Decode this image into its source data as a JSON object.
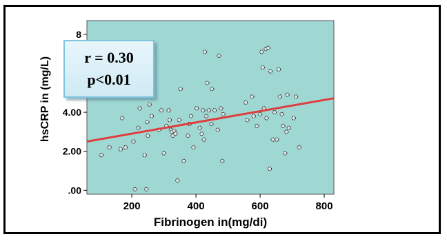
{
  "chart_data": {
    "type": "scatter",
    "xlabel": "Fibrinogen in(mg/di)",
    "ylabel": "hsCRP in (mg/L)",
    "xlim": [
      60,
      830
    ],
    "ylim": [
      -0.2,
      8.7
    ],
    "x_ticks": [
      200,
      400,
      600,
      800
    ],
    "x_tick_labels": [
      "200",
      "400",
      "600",
      "800"
    ],
    "y_ticks": [
      0,
      2,
      4,
      6,
      8
    ],
    "y_tick_labels": [
      ".00",
      "2.00",
      "4.00",
      "6",
      "8"
    ],
    "annotation": {
      "line1": "r = 0.30",
      "line2": "p<0.01"
    },
    "fit_line": {
      "x": [
        60,
        830
      ],
      "y": [
        2.5,
        4.72
      ],
      "color": "#e03c3c"
    },
    "plot_background": "#9fd8d3",
    "points": [
      {
        "x": 105,
        "y": 1.8
      },
      {
        "x": 130,
        "y": 2.2
      },
      {
        "x": 165,
        "y": 2.1
      },
      {
        "x": 170,
        "y": 3.7
      },
      {
        "x": 180,
        "y": 2.2
      },
      {
        "x": 205,
        "y": 2.5
      },
      {
        "x": 210,
        "y": 0.05
      },
      {
        "x": 220,
        "y": 3.2
      },
      {
        "x": 225,
        "y": 4.2
      },
      {
        "x": 240,
        "y": 1.8
      },
      {
        "x": 245,
        "y": 0.05
      },
      {
        "x": 248,
        "y": 3.5
      },
      {
        "x": 250,
        "y": 2.8
      },
      {
        "x": 255,
        "y": 4.4
      },
      {
        "x": 262,
        "y": 3.8
      },
      {
        "x": 285,
        "y": 3.1
      },
      {
        "x": 292,
        "y": 4.1
      },
      {
        "x": 300,
        "y": 1.9
      },
      {
        "x": 308,
        "y": 3.3
      },
      {
        "x": 315,
        "y": 4.1
      },
      {
        "x": 318,
        "y": 3.6
      },
      {
        "x": 322,
        "y": 3.1
      },
      {
        "x": 325,
        "y": 3.0
      },
      {
        "x": 328,
        "y": 2.8
      },
      {
        "x": 332,
        "y": 3.05
      },
      {
        "x": 336,
        "y": 2.9
      },
      {
        "x": 342,
        "y": 0.5
      },
      {
        "x": 348,
        "y": 3.6
      },
      {
        "x": 352,
        "y": 5.2
      },
      {
        "x": 362,
        "y": 1.5
      },
      {
        "x": 375,
        "y": 2.8
      },
      {
        "x": 380,
        "y": 3.4
      },
      {
        "x": 385,
        "y": 3.8
      },
      {
        "x": 392,
        "y": 2.2
      },
      {
        "x": 402,
        "y": 4.2
      },
      {
        "x": 412,
        "y": 3.2
      },
      {
        "x": 418,
        "y": 2.9
      },
      {
        "x": 422,
        "y": 4.1
      },
      {
        "x": 425,
        "y": 2.6
      },
      {
        "x": 428,
        "y": 7.1
      },
      {
        "x": 432,
        "y": 3.8
      },
      {
        "x": 435,
        "y": 5.5
      },
      {
        "x": 440,
        "y": 4.1
      },
      {
        "x": 448,
        "y": 3.4
      },
      {
        "x": 450,
        "y": 5.2
      },
      {
        "x": 458,
        "y": 4.1
      },
      {
        "x": 468,
        "y": 3.1
      },
      {
        "x": 472,
        "y": 6.9
      },
      {
        "x": 478,
        "y": 4.2
      },
      {
        "x": 482,
        "y": 1.5
      },
      {
        "x": 485,
        "y": 3.9
      },
      {
        "x": 555,
        "y": 4.5
      },
      {
        "x": 560,
        "y": 3.6
      },
      {
        "x": 575,
        "y": 4.8
      },
      {
        "x": 580,
        "y": 3.8
      },
      {
        "x": 590,
        "y": 3.3
      },
      {
        "x": 600,
        "y": 3.9
      },
      {
        "x": 605,
        "y": 7.1
      },
      {
        "x": 608,
        "y": 6.3
      },
      {
        "x": 612,
        "y": 4.2
      },
      {
        "x": 618,
        "y": 7.25
      },
      {
        "x": 620,
        "y": 3.7
      },
      {
        "x": 625,
        "y": 7.3
      },
      {
        "x": 630,
        "y": 1.1
      },
      {
        "x": 632,
        "y": 6.1
      },
      {
        "x": 640,
        "y": 2.6
      },
      {
        "x": 645,
        "y": 4.0
      },
      {
        "x": 652,
        "y": 2.6
      },
      {
        "x": 658,
        "y": 6.2
      },
      {
        "x": 662,
        "y": 4.8
      },
      {
        "x": 668,
        "y": 3.9
      },
      {
        "x": 672,
        "y": 3.3
      },
      {
        "x": 678,
        "y": 1.9
      },
      {
        "x": 682,
        "y": 3.0
      },
      {
        "x": 685,
        "y": 4.9
      },
      {
        "x": 690,
        "y": 3.2
      },
      {
        "x": 705,
        "y": 3.7
      },
      {
        "x": 712,
        "y": 4.8
      },
      {
        "x": 722,
        "y": 2.2
      }
    ]
  }
}
